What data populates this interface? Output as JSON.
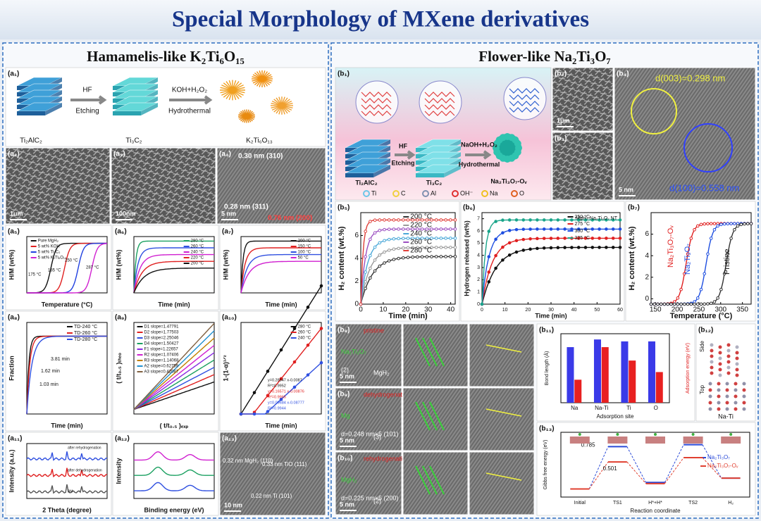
{
  "title": "Special Morphology of MXene derivatives",
  "left": {
    "heading": "Hamamelis-like K₂Ti₆O₁₅",
    "a1": {
      "label": "(a₁)",
      "steps": [
        "Ti₂AlC₂",
        "Ti₃C₂",
        "K₂Ti₆O₁₃"
      ],
      "arrows": [
        [
          "HF",
          "Etching"
        ],
        [
          "KOH+H₂O₂",
          "Hydrothermal"
        ]
      ]
    },
    "a2": {
      "label": "(a₂)",
      "scale": "1um"
    },
    "a3": {
      "label": "(a₃)",
      "scale": "100nm"
    },
    "a4": {
      "label": "(a₄)",
      "notes": [
        "0.30 nm (310)",
        "0.28 nm (311)",
        "0.76 nm (200)"
      ],
      "scale": "5 nm"
    },
    "a5": {
      "label": "(a₅)",
      "xlabel": "Temperature (°C)",
      "ylabel": "H/M (wt%)",
      "legend": [
        "Pure MgH₂",
        "5 wt% KOH",
        "5 wt% Ti₃C₂",
        "5 wt% K₂Ti₆O₁₃"
      ],
      "colors": [
        "#111111",
        "#e02020",
        "#2040e0",
        "#d020d0"
      ],
      "notes": [
        "175 °C",
        "185 °C",
        "250 °C",
        "287 °C"
      ]
    },
    "a6": {
      "label": "(a₆)",
      "xlabel": "Time (min)",
      "ylabel": "H/M (wt%)",
      "legend": [
        "280 °C",
        "260 °C",
        "240 °C",
        "220 °C",
        "200 °C"
      ],
      "colors": [
        "#1aa060",
        "#3050e0",
        "#d020d0",
        "#e02020",
        "#111111"
      ]
    },
    "a7": {
      "label": "(a₇)",
      "xlabel": "Time (min)",
      "ylabel": "H/M (wt%)",
      "legend": [
        "200 °C",
        "150 °C",
        "100 °C",
        "50 °C"
      ],
      "colors": [
        "#111111",
        "#e02020",
        "#3050e0",
        "#d020d0"
      ]
    },
    "a8": {
      "label": "(a₈)",
      "xlabel": "Time (min)",
      "ylabel": "Fraction",
      "legend": [
        "TD-240 °C",
        "TD-260 °C",
        "TD-280 °C"
      ],
      "colors": [
        "#111111",
        "#e02020",
        "#3050e0"
      ],
      "notes": [
        "3.81 min",
        "1.62 min",
        "1.03 min"
      ]
    },
    "a9": {
      "label": "(a₉)",
      "xlabel": "( t/t₀.₅ )ₑₓₚ",
      "ylabel": "( t/t₀.₅ )ₜₕₑₒ",
      "legend": [
        "D1 slope=1.47791",
        "D2 slope=1.77503",
        "D3 slope=2.25046",
        "D4 slope=1.50427",
        "F1 slope=1.22657",
        "R2 slope=1.07406",
        "R3 slope=1.14068",
        "A2 slope=0.62759",
        "A3 slope=0.42087"
      ],
      "colors": [
        "#111111",
        "#e02020",
        "#3050e0",
        "#1aa060",
        "#8a2be2",
        "#d020d0",
        "#c08000",
        "#2090d0",
        "#806040"
      ]
    },
    "a10": {
      "label": "(a₁₀)",
      "xlabel": "Time (min)",
      "ylabel": "1-(1-α)¹ᐟ²",
      "legend": [
        "280 °C",
        "260 °C",
        "240 °C"
      ],
      "colors": [
        "#111111",
        "#e02020",
        "#3050e0"
      ],
      "notes": [
        "y=0.28847 x-0.0087",
        "R²=0.9952",
        "y=0.16571 x-0.00876",
        "R²=0.9965",
        "y=0.09684 x-0.08777",
        "R²=0.9944"
      ]
    },
    "a11": {
      "label": "(a₁₁)",
      "xlabel": "2 Theta (degree)",
      "ylabel": "Intensity (a.u.)",
      "notes": [
        "after rehydrogenation",
        "after dehydrogenation",
        "BM"
      ],
      "colors": [
        "#3050e0",
        "#e02020",
        "#555555"
      ]
    },
    "a12": {
      "label": "(a₁₂)",
      "xlabel": "Binding energy (eV)",
      "ylabel": "Intensity",
      "colors": [
        "#d020d0",
        "#1aa060",
        "#3050e0"
      ]
    },
    "a13": {
      "label": "(a₁₃)",
      "notes": [
        "0.32 nm MgH₂ (110)",
        "0.33 nm TiO (111)",
        "0.22 nm Ti (101)"
      ],
      "scale": "10 nm"
    }
  },
  "right": {
    "heading": "Flower-like Na₂Ti₃O₇",
    "b1": {
      "label": "(b₁)",
      "steps": [
        "Ti₂AlC₂",
        "Ti₃C₂",
        "Na₂Ti₃O₇-Oᵥ"
      ],
      "arrows": [
        [
          "HF",
          "Etching"
        ],
        [
          "NaOH+H₂O₂",
          "Hydrothermal"
        ]
      ],
      "atoms": [
        {
          "name": "Ti",
          "color": "#6ec6e8"
        },
        {
          "name": "C",
          "color": "#f0d040"
        },
        {
          "name": "Al",
          "color": "#8090b0"
        },
        {
          "name": "OH⁻",
          "color": "#e03030"
        },
        {
          "name": "Na",
          "color": "#f0c020"
        },
        {
          "name": "O",
          "color": "#e06020"
        }
      ]
    },
    "b2": {
      "label": "(b₂)",
      "scale": "1μm"
    },
    "b3": {
      "label": "(b₃)"
    },
    "b4": {
      "label": "(b₄)",
      "notes": [
        "d(003)=0.298 nm",
        "d(100)=0.558 nm"
      ],
      "scale": "5 nm"
    },
    "b5": {
      "label": "(b₅)",
      "xlabel": "Time (min)",
      "ylabel": "H₂ content (wt.%)",
      "legend": [
        "200 °C",
        "220 °C",
        "240 °C",
        "260 °C",
        "280 °C"
      ],
      "colors": [
        "#333333",
        "#999999",
        "#4aa8d8",
        "#9b4fc0",
        "#e0403a"
      ],
      "xlim": [
        0,
        42
      ],
      "xticks": [
        0,
        10,
        20,
        30,
        40
      ],
      "ylim": [
        0,
        8
      ],
      "yticks": [
        0,
        2,
        4,
        6
      ]
    },
    "b6": {
      "label": "(b₆)",
      "title": "MgH₂-Na₂Ti₃O₇ NT",
      "xlabel": "Time (min)",
      "ylabel": "Hydrogen released (wt%)",
      "legend": [
        "250 °C",
        "275 °C",
        "300 °C",
        "325 °C"
      ],
      "colors": [
        "#111111",
        "#e02020",
        "#1f4fe0",
        "#1aa58a"
      ],
      "xlim": [
        0,
        60
      ],
      "xticks": [
        0,
        10,
        20,
        30,
        40,
        50,
        60
      ],
      "ylim": [
        0,
        7.5
      ],
      "yticks": [
        0,
        1,
        2,
        3,
        4,
        5,
        6,
        7
      ]
    },
    "b7": {
      "label": "(b₇)",
      "xlabel": "Temperature (°C)",
      "ylabel": "H₂ content (wt.%)",
      "notes": [
        "Na₂Ti₃O₇-Oᵥ",
        "Na₂Ti₃O₇",
        "Pristine"
      ],
      "colors": [
        "#e02020",
        "#1f4fe0",
        "#333333"
      ],
      "xlim": [
        140,
        370
      ],
      "xticks": [
        150,
        200,
        250,
        300,
        350
      ],
      "ylim": [
        -0.5,
        8
      ],
      "yticks": [
        0,
        2,
        4,
        6
      ]
    },
    "b8": {
      "label": "(b₈)",
      "notes": [
        "pristine",
        "Na₂Ti₃O₇",
        "MgH₂",
        "(2)"
      ],
      "scale": "5 nm"
    },
    "b9": {
      "label": "(b₉)",
      "notes": [
        "dehydrogenation",
        "Mg",
        "(3)",
        "d=0.248 nm×5 (101)"
      ],
      "scale": "5 nm"
    },
    "b10": {
      "label": "(b₁₀)",
      "notes": [
        "rehydrogenation",
        "MgH₂",
        "(2)",
        "d=0.225 nm×5 (200)"
      ],
      "scale": "5 nm"
    },
    "b11": {
      "label": "(b₁₁)",
      "type": "bar",
      "categories": [
        "Na",
        "Na-Ti",
        "Ti",
        "O"
      ],
      "xlabel": "Adsorption site",
      "ylabel": "Bond length (Å)",
      "y2label": "Adsorption energy (eV)",
      "ylim": [
        0,
        3.6
      ],
      "y2lim": [
        0,
        -1.8
      ],
      "series": [
        {
          "color": "#3a3ae8",
          "values": [
            2.9,
            3.3,
            3.2,
            3.2
          ]
        },
        {
          "color": "#e82020",
          "axis": "y2",
          "values": [
            -0.6,
            -1.45,
            -1.1,
            -0.8
          ]
        }
      ]
    },
    "b12": {
      "label": "(b₁₂)",
      "notes": [
        "Side",
        "Top",
        "Na-Ti"
      ]
    },
    "b13": {
      "label": "(b₁₃)",
      "type": "line",
      "categories": [
        "Initial",
        "TS1",
        "H*+H*",
        "TS2",
        "H₂"
      ],
      "xlabel": "Reaction coordinate",
      "ylabel": "Gibbs free energy (eV)",
      "ylim": [
        -0.15,
        1.05
      ],
      "series": [
        {
          "name": "Na₂Ti₃O₇",
          "color": "#2a4ad8",
          "values": [
            0,
            0.785,
            0.12,
            0.82,
            0.2
          ]
        },
        {
          "name": "Na₂Ti₃O₇-Oᵥ",
          "color": "#e04030",
          "values": [
            0,
            0.501,
            0.1,
            0.58,
            0.2
          ]
        }
      ],
      "value_labels": [
        "0.785",
        "0.501"
      ]
    }
  }
}
